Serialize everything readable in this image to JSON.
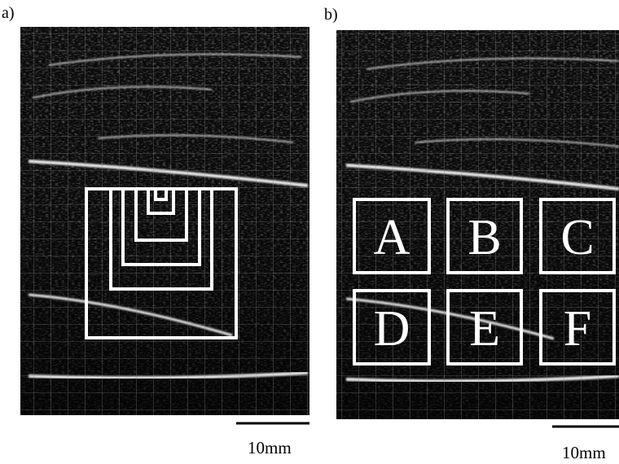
{
  "panels": [
    {
      "label": "a)",
      "scale_label": "10mm"
    },
    {
      "label": "b)",
      "scale_label": "10mm",
      "regions": [
        "A",
        "B",
        "C",
        "D",
        "E",
        "F"
      ]
    }
  ]
}
